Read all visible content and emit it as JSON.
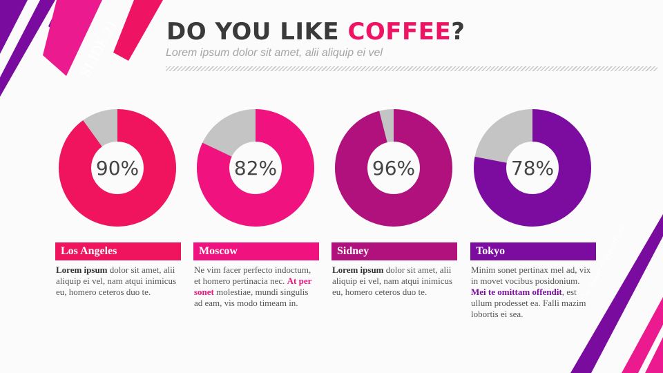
{
  "slide": {
    "tag": "SLIDE 21",
    "title_main": "DO YOU LIKE ",
    "title_accent": "COFFEE",
    "title_end": "?",
    "subtitle": "Lorem ipsum dolor sit amet, alii aliquip ei vel",
    "tagline": "The Power of PowerPoint"
  },
  "colors": {
    "remainder": "#c4c4c4",
    "title_accent": "#ee1463"
  },
  "chart_data": {
    "type": "pie",
    "variant": "donut",
    "title": "",
    "unit": "%",
    "categories": [
      "Los Angeles",
      "Moscow",
      "Sidney",
      "Tokyo"
    ],
    "values": [
      90,
      82,
      96,
      78
    ],
    "labels": [
      "90%",
      "82%",
      "96%",
      "78%"
    ],
    "colors": [
      "#f0145f",
      "#f0127f",
      "#b0117c",
      "#7c0ca0"
    ]
  },
  "columns": [
    {
      "city": "Los Angeles",
      "lead": "Lorem ipsum",
      "text": " dolor sit amet, alii aliquip ei vel, nam atqui inimicus eu, homero ceteros duo te.",
      "highlight": "",
      "tail": ""
    },
    {
      "city": "Moscow",
      "lead": "",
      "text": "Ne vim facer perfecto indoctum, et homero pertinacia nec. ",
      "highlight": "At per sonet",
      "tail": " molestiae, mundi singulis ad eam, vis modo timeam in."
    },
    {
      "city": "Sidney",
      "lead": "Lorem ipsum",
      "text": " dolor sit amet, alii aliquip ei vel, nam atqui inimicus eu, homero ceteros duo te.",
      "highlight": "",
      "tail": ""
    },
    {
      "city": "Tokyo",
      "lead": "",
      "text": "Minim sonet pertinax mel ad, vix in movet vocibus posidonium. ",
      "highlight": "Mei te omittam offendit",
      "tail": ", est ullum prodesset ea. Falli mazim lobortis ei sea."
    }
  ]
}
